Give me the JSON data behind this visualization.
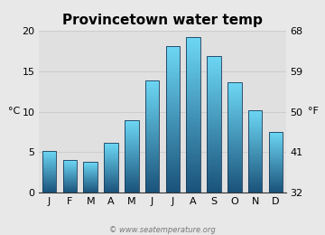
{
  "title": "Provincetown water temp",
  "months": [
    "J",
    "F",
    "M",
    "A",
    "M",
    "J",
    "J",
    "A",
    "S",
    "O",
    "N",
    "D"
  ],
  "values_c": [
    5.2,
    4.0,
    3.8,
    6.1,
    8.9,
    13.9,
    18.1,
    19.2,
    16.9,
    13.6,
    10.2,
    7.5
  ],
  "ylim_c": [
    0,
    20
  ],
  "yticks_c": [
    0,
    5,
    10,
    15,
    20
  ],
  "yticks_f": [
    32,
    41,
    50,
    59,
    68
  ],
  "ylabel_left": "°C",
  "ylabel_right": "°F",
  "bar_color_top": "#6dd8f5",
  "bar_color_bottom": "#1a527a",
  "bar_edge_color": "#1a3a5a",
  "background_color": "#e8e8e8",
  "plot_bg_color": "#e0e0e0",
  "grid_color": "#cccccc",
  "title_fontsize": 11,
  "axis_fontsize": 8,
  "tick_fontsize": 8,
  "watermark": "© www.seatemperature.org",
  "bar_width": 0.68
}
